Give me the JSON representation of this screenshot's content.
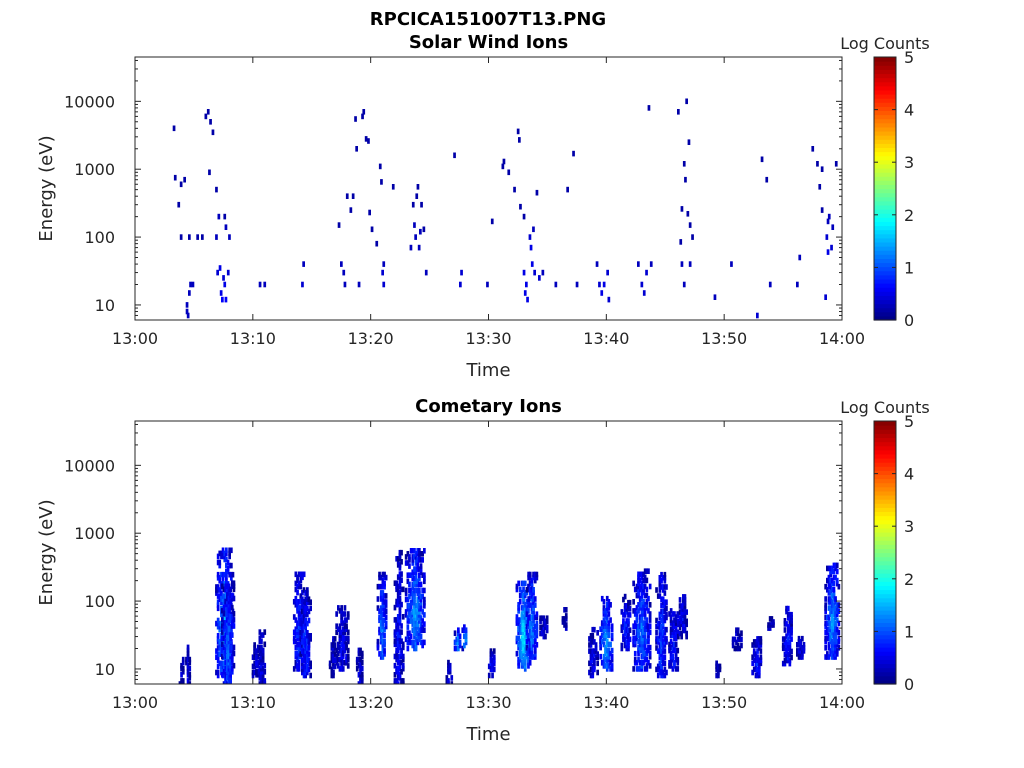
{
  "figure": {
    "title": "RPCICA151007T13.PNG"
  },
  "chart_data": [
    {
      "type": "heatmap",
      "title": "Solar Wind Ions",
      "xlabel": "Time",
      "ylabel": "Energy (eV)",
      "x_ticks": [
        "13:00",
        "13:10",
        "13:20",
        "13:30",
        "13:40",
        "13:50",
        "14:00"
      ],
      "x_range_minutes": [
        0,
        60
      ],
      "y_scale": "log",
      "y_ticks": [
        "10",
        "100",
        "1000",
        "10000"
      ],
      "y_range": [
        6,
        45000
      ],
      "colorbar": {
        "label": "Log Counts",
        "range": [
          0,
          5
        ],
        "ticks": [
          "0",
          "1",
          "2",
          "3",
          "4",
          "5"
        ],
        "colormap": "jet"
      },
      "grid": false,
      "cells": [
        [
          3.2,
          4000,
          0.2
        ],
        [
          3.3,
          750,
          0.2
        ],
        [
          3.6,
          300,
          0.2
        ],
        [
          3.8,
          100,
          0.2
        ],
        [
          3.8,
          600,
          0.2
        ],
        [
          4.1,
          700,
          0.2
        ],
        [
          4.5,
          100,
          0.2
        ],
        [
          4.3,
          8,
          0.3
        ],
        [
          4.3,
          10,
          0.3
        ],
        [
          4.4,
          7,
          0.3
        ],
        [
          4.5,
          15,
          0.3
        ],
        [
          4.6,
          20,
          0.3
        ],
        [
          4.8,
          20,
          0.3
        ],
        [
          5.2,
          100,
          0.2
        ],
        [
          5.6,
          100,
          0.2
        ],
        [
          5.9,
          6000,
          0.2
        ],
        [
          6.1,
          7000,
          0.2
        ],
        [
          6.3,
          5000,
          0.2
        ],
        [
          6.5,
          3500,
          0.2
        ],
        [
          6.2,
          900,
          0.2
        ],
        [
          6.8,
          500,
          0.2
        ],
        [
          6.8,
          100,
          0.3
        ],
        [
          6.9,
          30,
          0.4
        ],
        [
          7.0,
          200,
          0.3
        ],
        [
          7.1,
          35,
          0.5
        ],
        [
          7.2,
          15,
          0.5
        ],
        [
          7.3,
          12,
          0.6
        ],
        [
          7.4,
          25,
          0.4
        ],
        [
          7.5,
          20,
          0.5
        ],
        [
          7.6,
          140,
          0.3
        ],
        [
          7.6,
          12,
          0.6
        ],
        [
          7.8,
          30,
          0.4
        ],
        [
          7.5,
          200,
          0.2
        ],
        [
          7.9,
          100,
          0.3
        ],
        [
          10.5,
          20,
          0.3
        ],
        [
          10.9,
          20,
          0.3
        ],
        [
          14.1,
          20,
          0.4
        ],
        [
          14.2,
          40,
          0.3
        ],
        [
          17.2,
          150,
          0.2
        ],
        [
          17.4,
          40,
          0.3
        ],
        [
          17.6,
          30,
          0.3
        ],
        [
          17.7,
          20,
          0.3
        ],
        [
          17.9,
          400,
          0.2
        ],
        [
          18.2,
          250,
          0.2
        ],
        [
          18.4,
          400,
          0.2
        ],
        [
          18.6,
          5500,
          0.2
        ],
        [
          18.7,
          2000,
          0.2
        ],
        [
          18.9,
          20,
          0.3
        ],
        [
          19.2,
          6000,
          0.2
        ],
        [
          19.3,
          7000,
          0.2
        ],
        [
          19.5,
          2800,
          0.2
        ],
        [
          19.7,
          2600,
          0.2
        ],
        [
          19.8,
          230,
          0.2
        ],
        [
          20.0,
          130,
          0.2
        ],
        [
          20.4,
          80,
          0.2
        ],
        [
          20.7,
          1100,
          0.2
        ],
        [
          20.8,
          650,
          0.2
        ],
        [
          20.9,
          30,
          0.4
        ],
        [
          21.0,
          20,
          0.4
        ],
        [
          21.0,
          40,
          0.3
        ],
        [
          21.8,
          550,
          0.2
        ],
        [
          23.3,
          70,
          0.3
        ],
        [
          23.5,
          300,
          0.2
        ],
        [
          23.6,
          150,
          0.3
        ],
        [
          23.7,
          100,
          0.3
        ],
        [
          23.8,
          400,
          0.2
        ],
        [
          23.9,
          550,
          0.2
        ],
        [
          24.0,
          70,
          0.3
        ],
        [
          24.1,
          120,
          0.3
        ],
        [
          24.2,
          300,
          0.2
        ],
        [
          24.4,
          130,
          0.2
        ],
        [
          24.6,
          30,
          0.3
        ],
        [
          27.0,
          1600,
          0.2
        ],
        [
          27.5,
          20,
          0.4
        ],
        [
          27.6,
          30,
          0.4
        ],
        [
          29.8,
          20,
          0.3
        ],
        [
          30.2,
          170,
          0.2
        ],
        [
          31.1,
          1100,
          0.2
        ],
        [
          31.2,
          1300,
          0.2
        ],
        [
          31.6,
          900,
          0.2
        ],
        [
          32.1,
          500,
          0.2
        ],
        [
          32.4,
          3600,
          0.2
        ],
        [
          32.5,
          2700,
          0.2
        ],
        [
          32.6,
          280,
          0.2
        ],
        [
          32.9,
          200,
          0.2
        ],
        [
          32.9,
          30,
          0.5
        ],
        [
          33.0,
          15,
          0.5
        ],
        [
          33.1,
          20,
          0.5
        ],
        [
          33.2,
          12,
          0.5
        ],
        [
          33.4,
          100,
          0.4
        ],
        [
          33.5,
          70,
          0.5
        ],
        [
          33.6,
          40,
          0.5
        ],
        [
          33.7,
          130,
          0.3
        ],
        [
          33.8,
          30,
          0.4
        ],
        [
          34.0,
          450,
          0.2
        ],
        [
          34.2,
          25,
          0.4
        ],
        [
          34.5,
          30,
          0.3
        ],
        [
          35.6,
          20,
          0.3
        ],
        [
          36.6,
          500,
          0.2
        ],
        [
          37.1,
          1700,
          0.2
        ],
        [
          37.4,
          20,
          0.3
        ],
        [
          39.1,
          40,
          0.3
        ],
        [
          39.3,
          20,
          0.4
        ],
        [
          39.5,
          15,
          0.5
        ],
        [
          39.7,
          20,
          0.5
        ],
        [
          40.0,
          30,
          0.4
        ],
        [
          40.1,
          12,
          0.4
        ],
        [
          42.6,
          40,
          0.3
        ],
        [
          42.9,
          20,
          0.4
        ],
        [
          43.1,
          15,
          0.4
        ],
        [
          43.3,
          30,
          0.4
        ],
        [
          43.5,
          8000,
          0.2
        ],
        [
          43.7,
          40,
          0.3
        ],
        [
          46.0,
          7000,
          0.2
        ],
        [
          46.2,
          85,
          0.2
        ],
        [
          46.3,
          260,
          0.2
        ],
        [
          46.5,
          1200,
          0.2
        ],
        [
          46.6,
          700,
          0.2
        ],
        [
          46.7,
          10000,
          0.2
        ],
        [
          46.8,
          220,
          0.2
        ],
        [
          46.9,
          2500,
          0.2
        ],
        [
          47.0,
          150,
          0.2
        ],
        [
          47.2,
          100,
          0.2
        ],
        [
          46.3,
          40,
          0.3
        ],
        [
          46.5,
          20,
          0.3
        ],
        [
          47.0,
          40,
          0.3
        ],
        [
          49.1,
          13,
          0.3
        ],
        [
          50.5,
          40,
          0.3
        ],
        [
          52.7,
          7,
          0.4
        ],
        [
          53.1,
          1400,
          0.2
        ],
        [
          53.5,
          700,
          0.2
        ],
        [
          53.8,
          20,
          0.3
        ],
        [
          56.1,
          20,
          0.3
        ],
        [
          56.3,
          50,
          0.3
        ],
        [
          57.4,
          2000,
          0.2
        ],
        [
          57.8,
          1200,
          0.2
        ],
        [
          58.0,
          550,
          0.2
        ],
        [
          58.2,
          1000,
          0.2
        ],
        [
          58.2,
          250,
          0.2
        ],
        [
          58.5,
          13,
          0.4
        ],
        [
          58.6,
          100,
          0.4
        ],
        [
          58.7,
          60,
          0.5
        ],
        [
          58.8,
          200,
          0.3
        ],
        [
          59.0,
          70,
          0.4
        ],
        [
          59.1,
          140,
          0.3
        ],
        [
          59.4,
          1200,
          0.2
        ],
        [
          58.7,
          170,
          0.3
        ]
      ]
    },
    {
      "type": "heatmap",
      "title": "Cometary Ions",
      "xlabel": "Time",
      "ylabel": "Energy (eV)",
      "x_ticks": [
        "13:00",
        "13:10",
        "13:20",
        "13:30",
        "13:40",
        "13:50",
        "14:00"
      ],
      "x_range_minutes": [
        0,
        60
      ],
      "y_scale": "log",
      "y_ticks": [
        "10",
        "100",
        "1000",
        "10000"
      ],
      "y_range": [
        6,
        45000
      ],
      "colorbar": {
        "label": "Log Counts",
        "range": [
          0,
          5
        ],
        "ticks": [
          "0",
          "1",
          "2",
          "3",
          "4",
          "5"
        ],
        "colormap": "jet"
      },
      "grid": false,
      "bursts": [
        [
          3.9,
          6,
          15,
          0.4,
          0.4
        ],
        [
          4.4,
          6,
          22,
          0.3,
          0.5
        ],
        [
          7.5,
          8,
          600,
          1.4,
          1.5
        ],
        [
          7.8,
          6,
          200,
          1.0,
          1.2
        ],
        [
          10.6,
          6,
          40,
          0.8,
          0.5
        ],
        [
          10.1,
          8,
          25,
          0.4,
          0.4
        ],
        [
          13.9,
          10,
          250,
          1.0,
          1.0
        ],
        [
          14.4,
          8,
          150,
          0.9,
          0.9
        ],
        [
          17.5,
          10,
          80,
          1.0,
          0.6
        ],
        [
          16.7,
          8,
          30,
          0.5,
          0.4
        ],
        [
          19.0,
          6,
          20,
          0.5,
          0.4
        ],
        [
          20.9,
          15,
          250,
          0.8,
          1.2
        ],
        [
          22.3,
          6,
          550,
          0.7,
          0.7
        ],
        [
          23.7,
          20,
          600,
          1.6,
          1.4
        ],
        [
          27.3,
          20,
          40,
          0.5,
          1.6
        ],
        [
          27.9,
          20,
          45,
          0.4,
          1.6
        ],
        [
          26.6,
          6,
          15,
          0.5,
          0.5
        ],
        [
          30.2,
          8,
          20,
          0.5,
          0.8
        ],
        [
          32.9,
          10,
          200,
          1.2,
          1.8
        ],
        [
          33.6,
          15,
          250,
          0.9,
          1.3
        ],
        [
          34.6,
          30,
          60,
          0.6,
          0.5
        ],
        [
          36.4,
          40,
          80,
          0.4,
          0.3
        ],
        [
          38.8,
          8,
          40,
          0.7,
          0.6
        ],
        [
          39.9,
          10,
          120,
          1.0,
          1.5
        ],
        [
          41.6,
          20,
          120,
          0.8,
          0.8
        ],
        [
          42.9,
          10,
          300,
          1.4,
          1.2
        ],
        [
          44.6,
          8,
          250,
          0.9,
          1.0
        ],
        [
          45.6,
          10,
          80,
          0.7,
          0.8
        ],
        [
          46.4,
          30,
          120,
          0.8,
          0.6
        ],
        [
          49.4,
          8,
          15,
          0.3,
          0.4
        ],
        [
          51.0,
          20,
          40,
          0.7,
          0.5
        ],
        [
          52.7,
          8,
          30,
          0.8,
          0.8
        ],
        [
          53.9,
          40,
          60,
          0.5,
          0.5
        ],
        [
          55.3,
          12,
          80,
          0.8,
          0.8
        ],
        [
          56.4,
          15,
          30,
          0.6,
          0.5
        ],
        [
          59.1,
          15,
          350,
          1.2,
          1.4
        ]
      ]
    }
  ]
}
